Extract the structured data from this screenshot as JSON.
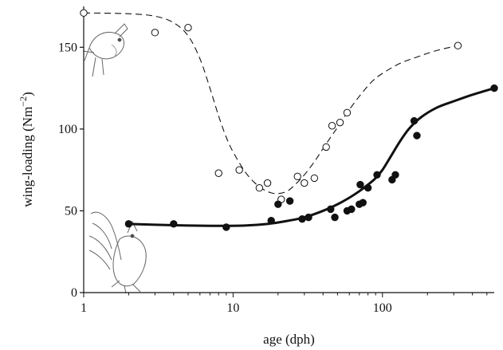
{
  "chart_data": {
    "type": "scatter",
    "xlabel": "age (dph)",
    "ylabel": "wing-loading (Nm−2)",
    "x_scale": "log",
    "xlim": [
      1,
      560
    ],
    "ylim": [
      0,
      175
    ],
    "x_ticks": [
      1,
      10,
      100
    ],
    "y_ticks": [
      0,
      50,
      100,
      150
    ],
    "grid": false,
    "legend": "none",
    "series": [
      {
        "marker": "open-circle",
        "line_style": "dashed",
        "color": "#111111",
        "points": [
          [
            1,
            171
          ],
          [
            3,
            159
          ],
          [
            5,
            162
          ],
          [
            8,
            73
          ],
          [
            11,
            75
          ],
          [
            15,
            64
          ],
          [
            17,
            67
          ],
          [
            21,
            57
          ],
          [
            27,
            71
          ],
          [
            30,
            67
          ],
          [
            35,
            70
          ],
          [
            42,
            89
          ],
          [
            46,
            102
          ],
          [
            52,
            104
          ],
          [
            58,
            110
          ],
          [
            320,
            151
          ]
        ],
        "fit": [
          [
            1,
            171
          ],
          [
            2,
            170.5
          ],
          [
            3,
            169
          ],
          [
            4,
            165
          ],
          [
            5,
            157
          ],
          [
            6,
            143
          ],
          [
            7,
            125
          ],
          [
            8,
            108
          ],
          [
            9,
            95
          ],
          [
            10,
            86
          ],
          [
            12,
            74
          ],
          [
            14,
            67
          ],
          [
            16,
            63
          ],
          [
            18,
            61
          ],
          [
            20,
            60.5
          ],
          [
            23,
            62
          ],
          [
            26,
            66
          ],
          [
            30,
            72
          ],
          [
            35,
            80
          ],
          [
            40,
            88
          ],
          [
            45,
            95
          ],
          [
            50,
            101
          ],
          [
            58,
            110
          ],
          [
            70,
            120
          ],
          [
            85,
            129
          ],
          [
            100,
            134
          ],
          [
            130,
            140
          ],
          [
            170,
            144
          ],
          [
            230,
            148
          ],
          [
            320,
            151
          ]
        ]
      },
      {
        "marker": "filled-circle",
        "line_style": "solid",
        "color": "#111111",
        "points": [
          [
            2,
            42
          ],
          [
            4,
            42
          ],
          [
            9,
            40
          ],
          [
            18,
            44
          ],
          [
            20,
            54
          ],
          [
            24,
            56
          ],
          [
            29,
            45
          ],
          [
            32,
            46
          ],
          [
            45,
            51
          ],
          [
            48,
            46
          ],
          [
            58,
            50
          ],
          [
            62,
            51
          ],
          [
            70,
            54
          ],
          [
            71,
            66
          ],
          [
            74,
            55
          ],
          [
            80,
            64
          ],
          [
            92,
            72
          ],
          [
            116,
            69
          ],
          [
            122,
            72
          ],
          [
            163,
            105
          ],
          [
            170,
            96
          ],
          [
            560,
            125
          ]
        ],
        "fit": [
          [
            2,
            42
          ],
          [
            3,
            41.5
          ],
          [
            5,
            41
          ],
          [
            8,
            40.8
          ],
          [
            12,
            41
          ],
          [
            17,
            42
          ],
          [
            22,
            43.5
          ],
          [
            30,
            46
          ],
          [
            40,
            50
          ],
          [
            50,
            54
          ],
          [
            60,
            58
          ],
          [
            70,
            62
          ],
          [
            80,
            66
          ],
          [
            90,
            70
          ],
          [
            100,
            75
          ],
          [
            115,
            84
          ],
          [
            130,
            92
          ],
          [
            150,
            100
          ],
          [
            180,
            107
          ],
          [
            230,
            113
          ],
          [
            300,
            117
          ],
          [
            400,
            121
          ],
          [
            560,
            125
          ]
        ]
      }
    ]
  }
}
